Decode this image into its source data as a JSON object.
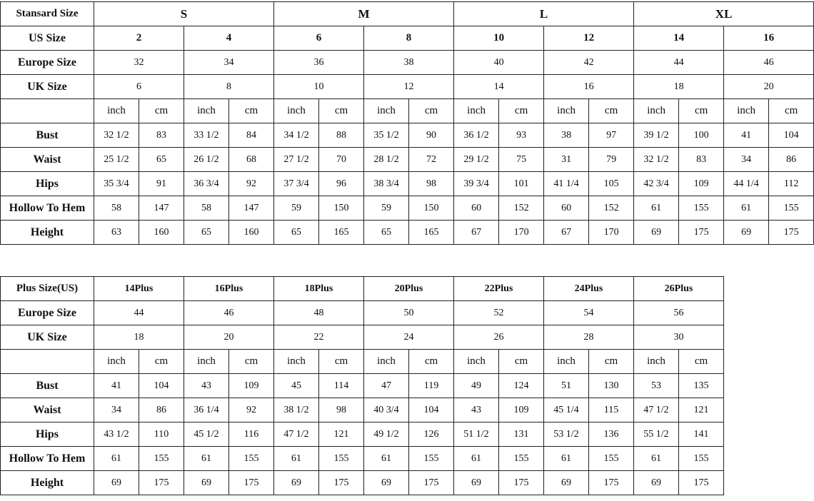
{
  "standard": {
    "header_label": "Stansard Size",
    "sizes": [
      "S",
      "M",
      "L",
      "XL"
    ],
    "us_label": "US Size",
    "us": [
      "2",
      "4",
      "6",
      "8",
      "10",
      "12",
      "14",
      "16"
    ],
    "europe_label": "Europe Size",
    "europe": [
      "32",
      "34",
      "36",
      "38",
      "40",
      "42",
      "44",
      "46"
    ],
    "uk_label": "UK Size",
    "uk": [
      "6",
      "8",
      "10",
      "12",
      "14",
      "16",
      "18",
      "20"
    ],
    "units": [
      "inch",
      "cm"
    ],
    "measurements": [
      {
        "label": "Bust",
        "values": [
          "32 1/2",
          "83",
          "33 1/2",
          "84",
          "34 1/2",
          "88",
          "35 1/2",
          "90",
          "36 1/2",
          "93",
          "38",
          "97",
          "39 1/2",
          "100",
          "41",
          "104"
        ]
      },
      {
        "label": "Waist",
        "values": [
          "25 1/2",
          "65",
          "26 1/2",
          "68",
          "27 1/2",
          "70",
          "28 1/2",
          "72",
          "29 1/2",
          "75",
          "31",
          "79",
          "32 1/2",
          "83",
          "34",
          "86"
        ]
      },
      {
        "label": "Hips",
        "values": [
          "35 3/4",
          "91",
          "36 3/4",
          "92",
          "37 3/4",
          "96",
          "38 3/4",
          "98",
          "39 3/4",
          "101",
          "41 1/4",
          "105",
          "42 3/4",
          "109",
          "44 1/4",
          "112"
        ]
      },
      {
        "label": "Hollow To Hem",
        "values": [
          "58",
          "147",
          "58",
          "147",
          "59",
          "150",
          "59",
          "150",
          "60",
          "152",
          "60",
          "152",
          "61",
          "155",
          "61",
          "155"
        ]
      },
      {
        "label": "Height",
        "values": [
          "63",
          "160",
          "65",
          "160",
          "65",
          "165",
          "65",
          "165",
          "67",
          "170",
          "67",
          "170",
          "69",
          "175",
          "69",
          "175"
        ]
      }
    ]
  },
  "plus": {
    "header_label": "Plus Size(US)",
    "sizes": [
      "14Plus",
      "16Plus",
      "18Plus",
      "20Plus",
      "22Plus",
      "24Plus",
      "26Plus"
    ],
    "europe_label": "Europe Size",
    "europe": [
      "44",
      "46",
      "48",
      "50",
      "52",
      "54",
      "56"
    ],
    "uk_label": "UK Size",
    "uk": [
      "18",
      "20",
      "22",
      "24",
      "26",
      "28",
      "30"
    ],
    "units": [
      "inch",
      "cm"
    ],
    "measurements": [
      {
        "label": "Bust",
        "values": [
          "41",
          "104",
          "43",
          "109",
          "45",
          "114",
          "47",
          "119",
          "49",
          "124",
          "51",
          "130",
          "53",
          "135"
        ]
      },
      {
        "label": "Waist",
        "values": [
          "34",
          "86",
          "36 1/4",
          "92",
          "38 1/2",
          "98",
          "40 3/4",
          "104",
          "43",
          "109",
          "45 1/4",
          "115",
          "47 1/2",
          "121"
        ]
      },
      {
        "label": "Hips",
        "values": [
          "43 1/2",
          "110",
          "45 1/2",
          "116",
          "47 1/2",
          "121",
          "49 1/2",
          "126",
          "51 1/2",
          "131",
          "53 1/2",
          "136",
          "55 1/2",
          "141"
        ]
      },
      {
        "label": "Hollow To Hem",
        "values": [
          "61",
          "155",
          "61",
          "155",
          "61",
          "155",
          "61",
          "155",
          "61",
          "155",
          "61",
          "155",
          "61",
          "155"
        ]
      },
      {
        "label": "Height",
        "values": [
          "69",
          "175",
          "69",
          "175",
          "69",
          "175",
          "69",
          "175",
          "69",
          "175",
          "69",
          "175",
          "69",
          "175"
        ]
      }
    ]
  }
}
